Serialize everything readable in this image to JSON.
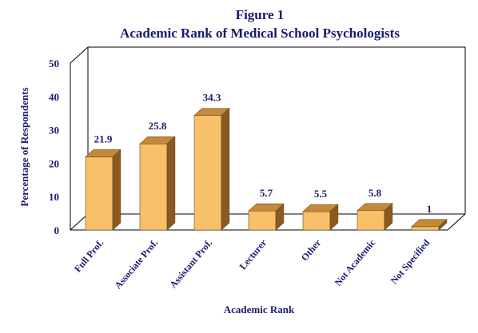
{
  "chart_data": {
    "type": "bar",
    "title": "Figure 1",
    "subtitle": "Academic Rank of Medical School Psychologists",
    "xlabel": "Academic Rank",
    "ylabel": "Percentage of Respondents",
    "categories": [
      "Full Prof.",
      "Associate Prof.",
      "Assistant Prof.",
      "Lecturer",
      "Other",
      "Not Academic",
      "Not Specified"
    ],
    "values": [
      21.9,
      25.8,
      34.3,
      5.7,
      5.5,
      5.8,
      1
    ],
    "data_labels": [
      "21.9",
      "25.8",
      "34.3",
      "5.7",
      "5.5",
      "5.8",
      "1"
    ],
    "yticks": [
      "0",
      "10",
      "20",
      "30",
      "40",
      "50"
    ],
    "ylim": [
      0,
      50
    ],
    "grid": false,
    "legend": "none",
    "style": "3d",
    "colors": {
      "text": "#1a1a6e",
      "bar_front": "#f9c06a",
      "bar_top": "#c48a3c",
      "bar_side": "#8a5a22",
      "bar_edge": "#6b4a1a"
    }
  }
}
